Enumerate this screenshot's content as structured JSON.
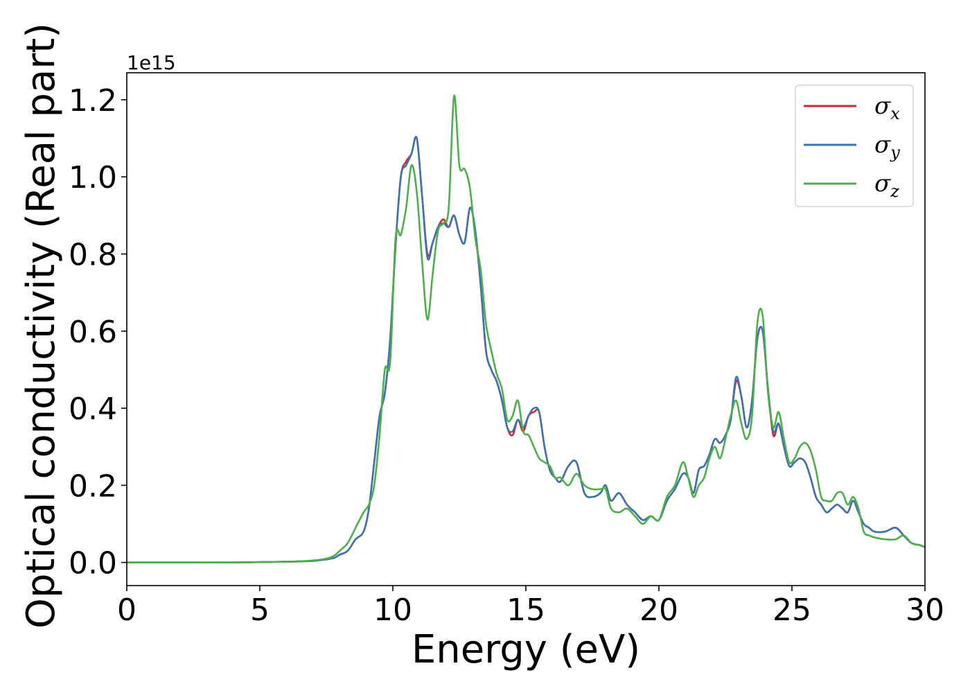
{
  "chart_data": {
    "type": "line",
    "xlabel": "Energy (eV)",
    "ylabel": "Optical conductivity (Real part)",
    "y_offset_label": "1e15",
    "xlim": [
      0,
      30
    ],
    "ylim": [
      -0.06,
      1.27
    ],
    "xticks": [
      0,
      5,
      10,
      15,
      20,
      25,
      30
    ],
    "xtick_labels": [
      "0",
      "5",
      "10",
      "15",
      "20",
      "25",
      "30"
    ],
    "yticks": [
      0.0,
      0.2,
      0.4,
      0.6,
      0.8,
      1.0,
      1.2
    ],
    "ytick_labels": [
      "0.0",
      "0.2",
      "0.4",
      "0.6",
      "0.8",
      "1.0",
      "1.2"
    ],
    "grid": false,
    "legend_position": "top-right",
    "x": [
      0,
      2,
      4,
      6,
      7,
      7.5,
      7.8,
      8,
      8.3,
      8.6,
      8.9,
      9.1,
      9.3,
      9.5,
      9.7,
      9.9,
      10.1,
      10.3,
      10.5,
      10.7,
      10.9,
      11.1,
      11.3,
      11.5,
      11.7,
      11.9,
      12.1,
      12.3,
      12.5,
      12.7,
      12.9,
      13.1,
      13.3,
      13.5,
      13.7,
      13.9,
      14.1,
      14.3,
      14.5,
      14.7,
      14.9,
      15.1,
      15.3,
      15.5,
      15.7,
      15.9,
      16.1,
      16.3,
      16.6,
      16.9,
      17.2,
      17.5,
      17.8,
      18.0,
      18.2,
      18.5,
      18.8,
      19.1,
      19.4,
      19.7,
      20.0,
      20.3,
      20.6,
      20.9,
      21.1,
      21.3,
      21.5,
      21.7,
      21.9,
      22.1,
      22.3,
      22.5,
      22.7,
      22.9,
      23.1,
      23.3,
      23.5,
      23.7,
      23.9,
      24.1,
      24.3,
      24.5,
      24.7,
      24.9,
      25.1,
      25.3,
      25.5,
      25.7,
      25.9,
      26.1,
      26.3,
      26.5,
      26.7,
      26.9,
      27.1,
      27.3,
      27.5,
      27.7,
      27.9,
      28.1,
      28.5,
      28.9,
      29.2,
      29.5,
      29.8,
      30.0
    ],
    "series": [
      {
        "name": "σx",
        "color": "#d62728",
        "values": [
          0,
          0,
          0,
          0.002,
          0.004,
          0.008,
          0.012,
          0.02,
          0.03,
          0.06,
          0.08,
          0.14,
          0.26,
          0.38,
          0.44,
          0.58,
          0.82,
          1.0,
          1.04,
          1.06,
          1.1,
          0.95,
          0.8,
          0.83,
          0.87,
          0.89,
          0.87,
          0.9,
          0.85,
          0.83,
          0.92,
          0.86,
          0.72,
          0.55,
          0.5,
          0.47,
          0.42,
          0.35,
          0.33,
          0.37,
          0.34,
          0.38,
          0.39,
          0.39,
          0.3,
          0.24,
          0.22,
          0.21,
          0.25,
          0.26,
          0.18,
          0.17,
          0.18,
          0.2,
          0.16,
          0.18,
          0.15,
          0.13,
          0.11,
          0.12,
          0.11,
          0.16,
          0.19,
          0.23,
          0.22,
          0.18,
          0.24,
          0.25,
          0.28,
          0.32,
          0.31,
          0.33,
          0.37,
          0.47,
          0.43,
          0.35,
          0.42,
          0.58,
          0.6,
          0.45,
          0.33,
          0.36,
          0.3,
          0.25,
          0.26,
          0.27,
          0.26,
          0.22,
          0.17,
          0.15,
          0.13,
          0.14,
          0.15,
          0.14,
          0.13,
          0.16,
          0.13,
          0.1,
          0.09,
          0.08,
          0.08,
          0.09,
          0.07,
          0.05,
          0.045,
          0.04
        ]
      },
      {
        "name": "σy",
        "color": "#3a74b4",
        "values": [
          0,
          0,
          0,
          0.002,
          0.004,
          0.008,
          0.012,
          0.02,
          0.03,
          0.06,
          0.08,
          0.14,
          0.26,
          0.38,
          0.44,
          0.58,
          0.82,
          1.0,
          1.03,
          1.06,
          1.1,
          0.95,
          0.79,
          0.83,
          0.87,
          0.88,
          0.87,
          0.9,
          0.85,
          0.83,
          0.92,
          0.86,
          0.72,
          0.55,
          0.5,
          0.47,
          0.42,
          0.35,
          0.34,
          0.37,
          0.35,
          0.38,
          0.4,
          0.39,
          0.3,
          0.24,
          0.22,
          0.21,
          0.25,
          0.26,
          0.18,
          0.17,
          0.18,
          0.2,
          0.16,
          0.18,
          0.15,
          0.13,
          0.11,
          0.12,
          0.11,
          0.16,
          0.19,
          0.23,
          0.22,
          0.18,
          0.24,
          0.25,
          0.28,
          0.32,
          0.31,
          0.33,
          0.37,
          0.48,
          0.43,
          0.35,
          0.42,
          0.58,
          0.6,
          0.45,
          0.34,
          0.36,
          0.3,
          0.25,
          0.26,
          0.27,
          0.26,
          0.22,
          0.17,
          0.15,
          0.13,
          0.14,
          0.15,
          0.14,
          0.13,
          0.16,
          0.13,
          0.1,
          0.09,
          0.08,
          0.08,
          0.09,
          0.07,
          0.05,
          0.045,
          0.04
        ]
      },
      {
        "name": "σz",
        "color": "#4daf4a",
        "values": [
          0,
          0,
          0,
          0.002,
          0.005,
          0.01,
          0.018,
          0.03,
          0.05,
          0.09,
          0.13,
          0.15,
          0.2,
          0.33,
          0.5,
          0.52,
          0.84,
          0.85,
          0.92,
          1.03,
          0.96,
          0.78,
          0.63,
          0.75,
          0.86,
          0.88,
          0.92,
          1.21,
          1.03,
          1.02,
          0.97,
          0.84,
          0.76,
          0.62,
          0.55,
          0.49,
          0.45,
          0.37,
          0.38,
          0.42,
          0.34,
          0.33,
          0.3,
          0.27,
          0.26,
          0.25,
          0.22,
          0.22,
          0.2,
          0.23,
          0.2,
          0.19,
          0.19,
          0.19,
          0.14,
          0.13,
          0.14,
          0.12,
          0.1,
          0.12,
          0.11,
          0.17,
          0.2,
          0.26,
          0.22,
          0.17,
          0.2,
          0.22,
          0.27,
          0.3,
          0.27,
          0.32,
          0.38,
          0.42,
          0.36,
          0.32,
          0.38,
          0.62,
          0.64,
          0.44,
          0.35,
          0.39,
          0.32,
          0.26,
          0.27,
          0.3,
          0.31,
          0.29,
          0.24,
          0.17,
          0.16,
          0.16,
          0.18,
          0.18,
          0.15,
          0.17,
          0.14,
          0.08,
          0.07,
          0.065,
          0.06,
          0.06,
          0.07,
          0.05,
          0.045,
          0.04
        ]
      }
    ]
  }
}
